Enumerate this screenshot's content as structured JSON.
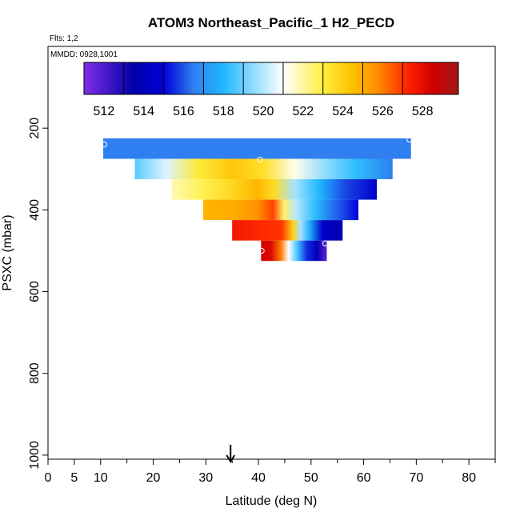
{
  "chart_data": {
    "type": "heatmap",
    "title": "ATOM3 Northeast_Pacific_1 H2_PECD",
    "flights_label": "Flts: 1,2",
    "date_label": "MMDD: 0928,1001",
    "xlabel": "Latitude (deg N)",
    "ylabel": "PSXC (mbar)",
    "xlim": [
      0,
      85
    ],
    "ylim": [
      1010,
      0
    ],
    "x_ticks": [
      0,
      5,
      10,
      20,
      30,
      40,
      50,
      60,
      70,
      80
    ],
    "x_tick_labels": [
      "0",
      "5",
      "10",
      "20",
      "30",
      "40",
      "50",
      "60",
      "70",
      "80"
    ],
    "x_minor_ticks": [
      15,
      25,
      35,
      45,
      55,
      65,
      75,
      85
    ],
    "y_ticks": [
      200,
      400,
      600,
      800,
      1000
    ],
    "y_tick_labels": [
      "200",
      "400",
      "600",
      "800",
      "1000"
    ],
    "colorbar": {
      "range": [
        511,
        529.8
      ],
      "colors": [
        "#7f2fe6",
        "#0000a8",
        "#0000d8",
        "#2f7ff0",
        "#1fb8ff",
        "#ffffff",
        "#ffef40",
        "#ffc000",
        "#ff8a00",
        "#ff2000",
        "#d00000",
        "#a01818"
      ],
      "stops": [
        511,
        513.5,
        515,
        516.5,
        518,
        521,
        523,
        524.5,
        525.8,
        527.3,
        528.5,
        529.8
      ],
      "tick_values": [
        512,
        514,
        516,
        518,
        520,
        522,
        524,
        526,
        528
      ],
      "tick_labels": [
        "512",
        "514",
        "516",
        "518",
        "520",
        "522",
        "524",
        "526",
        "528"
      ],
      "grid_lines": [
        513,
        515,
        517,
        519,
        521,
        523,
        525,
        527
      ]
    },
    "rows": [
      {
        "p_top": 225,
        "p_bottom": 275,
        "lat_start": 10.5,
        "lat_end": 69,
        "profile": [
          [
            0,
            516.5
          ],
          [
            1,
            516.5
          ]
        ]
      },
      {
        "p_top": 275,
        "p_bottom": 325,
        "lat_start": 16.5,
        "lat_end": 65.5,
        "profile": [
          [
            0,
            518.8
          ],
          [
            0.12,
            520.5
          ],
          [
            0.25,
            523.2
          ],
          [
            0.38,
            524.3
          ],
          [
            0.5,
            523.5
          ],
          [
            0.62,
            521.2
          ],
          [
            0.74,
            519.5
          ],
          [
            0.86,
            518.2
          ],
          [
            1,
            516.5
          ]
        ]
      },
      {
        "p_top": 325,
        "p_bottom": 375,
        "lat_start": 23.5,
        "lat_end": 62.5,
        "profile": [
          [
            0,
            521.8
          ],
          [
            0.15,
            522.8
          ],
          [
            0.3,
            523.8
          ],
          [
            0.42,
            524.8
          ],
          [
            0.5,
            523.6
          ],
          [
            0.6,
            519.8
          ],
          [
            0.72,
            518.0
          ],
          [
            0.85,
            515.8
          ],
          [
            1,
            514.5
          ]
        ]
      },
      {
        "p_top": 375,
        "p_bottom": 425,
        "lat_start": 29.5,
        "lat_end": 59,
        "profile": [
          [
            0,
            524.8
          ],
          [
            0.2,
            525.0
          ],
          [
            0.35,
            525.6
          ],
          [
            0.45,
            526.8
          ],
          [
            0.52,
            522.6
          ],
          [
            0.6,
            520.0
          ],
          [
            0.72,
            518.2
          ],
          [
            0.88,
            516.0
          ],
          [
            1,
            515.0
          ]
        ]
      },
      {
        "p_top": 425,
        "p_bottom": 475,
        "lat_start": 35,
        "lat_end": 56,
        "profile": [
          [
            0,
            527.6
          ],
          [
            0.25,
            527.2
          ],
          [
            0.45,
            527.0
          ],
          [
            0.55,
            524.0
          ],
          [
            0.62,
            519.8
          ],
          [
            0.7,
            517.8
          ],
          [
            0.82,
            514.5
          ],
          [
            1,
            513.8
          ]
        ]
      },
      {
        "p_top": 475,
        "p_bottom": 525,
        "lat_start": 40.5,
        "lat_end": 53,
        "profile": [
          [
            0,
            528.4
          ],
          [
            0.15,
            528.2
          ],
          [
            0.3,
            526.0
          ],
          [
            0.42,
            521.0
          ],
          [
            0.55,
            518.5
          ],
          [
            0.7,
            515.5
          ],
          [
            0.85,
            513.8
          ],
          [
            1,
            511.6
          ]
        ]
      }
    ],
    "markers": [
      {
        "lat": 10.7,
        "p": 240
      },
      {
        "lat": 68.7,
        "p": 228
      },
      {
        "lat": 40.3,
        "p": 277
      },
      {
        "lat": 52.7,
        "p": 482
      },
      {
        "lat": 40.6,
        "p": 500
      }
    ],
    "arrow_lat": 34.7
  }
}
